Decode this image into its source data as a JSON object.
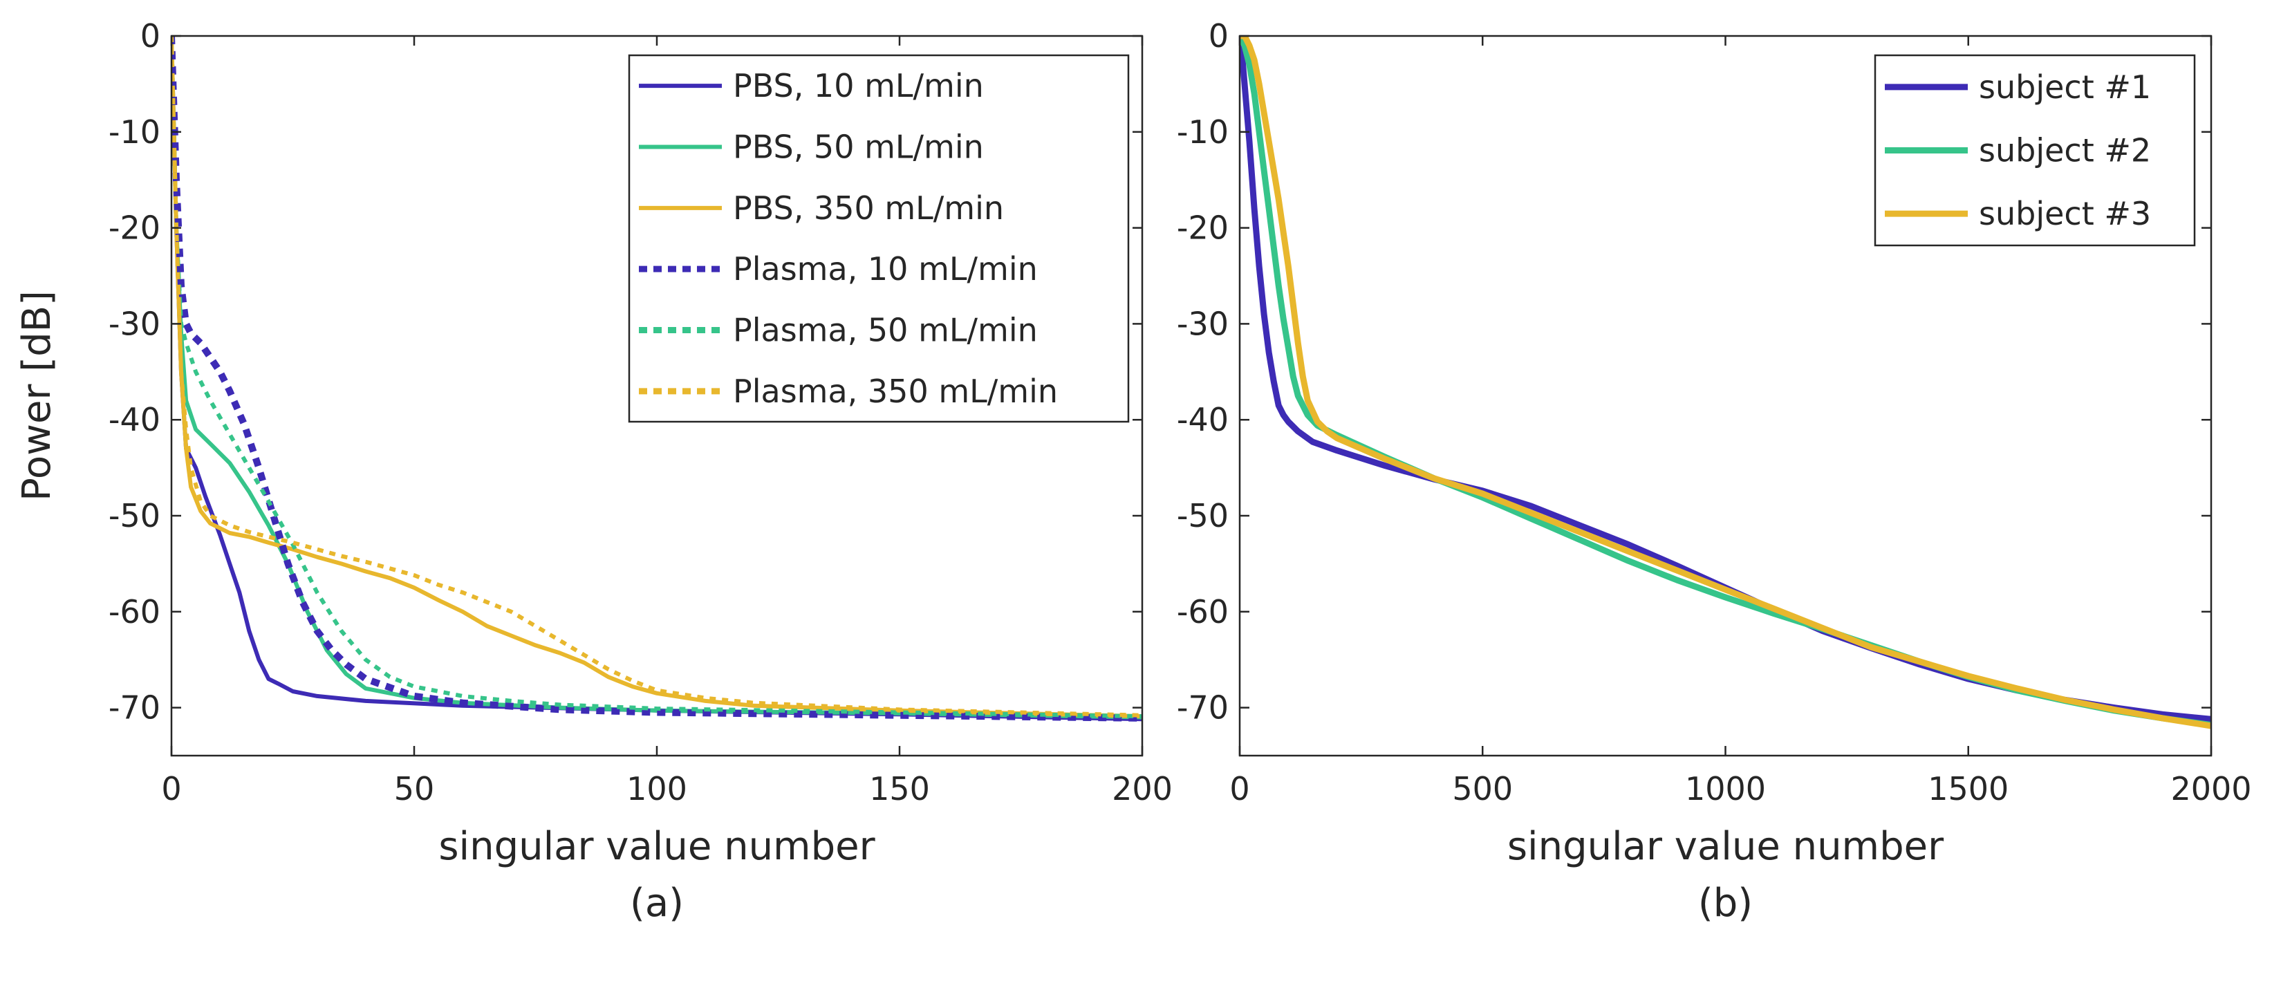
{
  "chart_data": [
    {
      "type": "line",
      "caption": "(a)",
      "xlabel": "singular value number",
      "ylabel": "Power [dB]",
      "xlim": [
        0,
        200
      ],
      "ylim": [
        -75,
        0
      ],
      "xticks": [
        0,
        50,
        100,
        150,
        200
      ],
      "yticks": [
        0,
        -10,
        -20,
        -30,
        -40,
        -50,
        -60,
        -70
      ],
      "legend_position": "top-right",
      "series": [
        {
          "name": "PBS, 10 mL/min",
          "color": "#3d2bb5",
          "style": "solid",
          "x": [
            0,
            1,
            2,
            3,
            5,
            7,
            10,
            12,
            14,
            16,
            18,
            20,
            22,
            25,
            30,
            40,
            60,
            100,
            150,
            200
          ],
          "y": [
            0,
            -20,
            -35,
            -43,
            -45,
            -48,
            -52,
            -55,
            -58,
            -62,
            -65,
            -67,
            -67.5,
            -68.3,
            -68.8,
            -69.3,
            -69.8,
            -70.3,
            -70.7,
            -71.2
          ]
        },
        {
          "name": "PBS, 50 mL/min",
          "color": "#36c48a",
          "style": "solid",
          "x": [
            0,
            1,
            2,
            3,
            5,
            8,
            12,
            16,
            20,
            24,
            28,
            32,
            36,
            40,
            50,
            60,
            80,
            100,
            150,
            200
          ],
          "y": [
            0,
            -20,
            -31,
            -38,
            -41,
            -42.5,
            -44.5,
            -47.5,
            -51,
            -55,
            -60,
            -64,
            -66.5,
            -68,
            -69,
            -69.5,
            -70,
            -70.3,
            -70.6,
            -71
          ]
        },
        {
          "name": "PBS, 350 mL/min",
          "color": "#e8b72d",
          "style": "solid",
          "x": [
            0,
            1,
            2,
            3,
            4,
            6,
            8,
            12,
            16,
            20,
            25,
            30,
            35,
            40,
            45,
            50,
            55,
            60,
            65,
            70,
            75,
            80,
            85,
            90,
            95,
            100,
            110,
            120,
            150,
            200
          ],
          "y": [
            0,
            -20,
            -35,
            -43,
            -47,
            -49.5,
            -50.8,
            -51.8,
            -52.2,
            -52.8,
            -53.5,
            -54.3,
            -55,
            -55.8,
            -56.5,
            -57.5,
            -58.8,
            -60,
            -61.5,
            -62.5,
            -63.5,
            -64.3,
            -65.3,
            -66.8,
            -67.8,
            -68.5,
            -69.3,
            -69.8,
            -70.3,
            -70.9
          ]
        },
        {
          "name": "Plasma, 10 mL/min",
          "color": "#3d2bb5",
          "style": "dotted",
          "x": [
            0,
            1,
            2,
            3,
            4,
            6,
            8,
            10,
            12,
            15,
            18,
            21,
            24,
            27,
            30,
            33,
            36,
            40,
            50,
            60,
            80,
            100,
            150,
            200
          ],
          "y": [
            0,
            -15,
            -26,
            -30,
            -31,
            -32,
            -33.5,
            -35,
            -37,
            -40.5,
            -45,
            -50,
            -55,
            -59,
            -62,
            -64,
            -65.5,
            -67,
            -68.8,
            -69.5,
            -70.2,
            -70.5,
            -70.8,
            -71.1
          ]
        },
        {
          "name": "Plasma, 50 mL/min",
          "color": "#36c48a",
          "style": "dotted",
          "x": [
            0,
            1,
            2,
            3,
            5,
            8,
            12,
            16,
            20,
            25,
            30,
            35,
            40,
            45,
            50,
            60,
            70,
            80,
            100,
            150,
            200
          ],
          "y": [
            0,
            -20,
            -30,
            -32,
            -35,
            -38,
            -41.5,
            -45,
            -48.5,
            -53,
            -58,
            -62,
            -65,
            -66.8,
            -67.8,
            -68.8,
            -69.3,
            -69.7,
            -70.1,
            -70.5,
            -70.9
          ]
        },
        {
          "name": "Plasma, 350 mL/min",
          "color": "#e8b72d",
          "style": "dotted",
          "x": [
            0,
            1,
            2,
            3,
            4,
            6,
            8,
            12,
            16,
            20,
            25,
            30,
            35,
            40,
            45,
            50,
            55,
            60,
            65,
            70,
            75,
            80,
            85,
            90,
            95,
            100,
            110,
            120,
            150,
            200
          ],
          "y": [
            0,
            -20,
            -35,
            -41,
            -45,
            -48.5,
            -50,
            -51,
            -51.7,
            -52.2,
            -52.8,
            -53.5,
            -54.2,
            -54.8,
            -55.5,
            -56.2,
            -57.2,
            -58,
            -59,
            -60,
            -61.5,
            -63,
            -64.5,
            -66,
            -67.2,
            -68.2,
            -69,
            -69.5,
            -70.2,
            -70.8
          ]
        }
      ]
    },
    {
      "type": "line",
      "caption": "(b)",
      "xlabel": "singular value number",
      "ylabel": "",
      "xlim": [
        0,
        2000
      ],
      "ylim": [
        -75,
        0
      ],
      "xticks": [
        0,
        500,
        1000,
        1500,
        2000
      ],
      "yticks": [
        0,
        -10,
        -20,
        -30,
        -40,
        -50,
        -60,
        -70
      ],
      "legend_position": "top-right",
      "series": [
        {
          "name": "subject #1",
          "color": "#3d2bb5",
          "x": [
            0,
            5,
            10,
            15,
            20,
            30,
            40,
            50,
            60,
            70,
            80,
            90,
            100,
            120,
            150,
            200,
            300,
            400,
            500,
            600,
            700,
            800,
            900,
            1000,
            1100,
            1200,
            1300,
            1400,
            1500,
            1600,
            1700,
            1800,
            1900,
            2000
          ],
          "y": [
            0,
            -2,
            -5,
            -8,
            -11,
            -18,
            -24,
            -29,
            -33,
            -36,
            -38.5,
            -39.5,
            -40.2,
            -41.2,
            -42.3,
            -43.2,
            -44.8,
            -46.2,
            -47.4,
            -49,
            -51,
            -53,
            -55.2,
            -57.5,
            -59.8,
            -62,
            -63.8,
            -65.5,
            -67,
            -68.2,
            -69.2,
            -70,
            -70.7,
            -71.2
          ]
        },
        {
          "name": "subject #2",
          "color": "#36c48a",
          "x": [
            0,
            10,
            20,
            30,
            40,
            50,
            60,
            70,
            80,
            90,
            100,
            110,
            120,
            140,
            160,
            200,
            300,
            400,
            500,
            600,
            700,
            800,
            900,
            1000,
            1100,
            1200,
            1300,
            1400,
            1500,
            1600,
            1700,
            1800,
            1900,
            2000
          ],
          "y": [
            0,
            -1,
            -3,
            -6,
            -10,
            -14,
            -18,
            -22,
            -26,
            -29.5,
            -32.5,
            -35.5,
            -37.5,
            -39.5,
            -40.6,
            -41.6,
            -43.9,
            -46.1,
            -48.1,
            -50.3,
            -52.5,
            -54.7,
            -56.7,
            -58.5,
            -60.2,
            -61.8,
            -63.5,
            -65.2,
            -66.8,
            -68.2,
            -69.3,
            -70.3,
            -71.1,
            -71.8
          ]
        },
        {
          "name": "subject #3",
          "color": "#e8b72d",
          "x": [
            0,
            10,
            20,
            30,
            40,
            50,
            60,
            70,
            80,
            90,
            100,
            110,
            120,
            130,
            140,
            160,
            180,
            200,
            300,
            400,
            500,
            600,
            700,
            800,
            900,
            1000,
            1100,
            1200,
            1300,
            1400,
            1500,
            1600,
            1700,
            1800,
            1900,
            2000
          ],
          "y": [
            0,
            0,
            -1,
            -2.5,
            -5,
            -8,
            -11,
            -14,
            -17,
            -20.5,
            -24,
            -28,
            -32,
            -35.5,
            -38,
            -40.2,
            -41.2,
            -41.9,
            -44.1,
            -46.1,
            -47.7,
            -49.7,
            -51.7,
            -53.7,
            -55.7,
            -57.7,
            -59.7,
            -61.7,
            -63.7,
            -65.2,
            -66.7,
            -68,
            -69.2,
            -70.2,
            -71.1,
            -71.9
          ]
        }
      ]
    }
  ]
}
